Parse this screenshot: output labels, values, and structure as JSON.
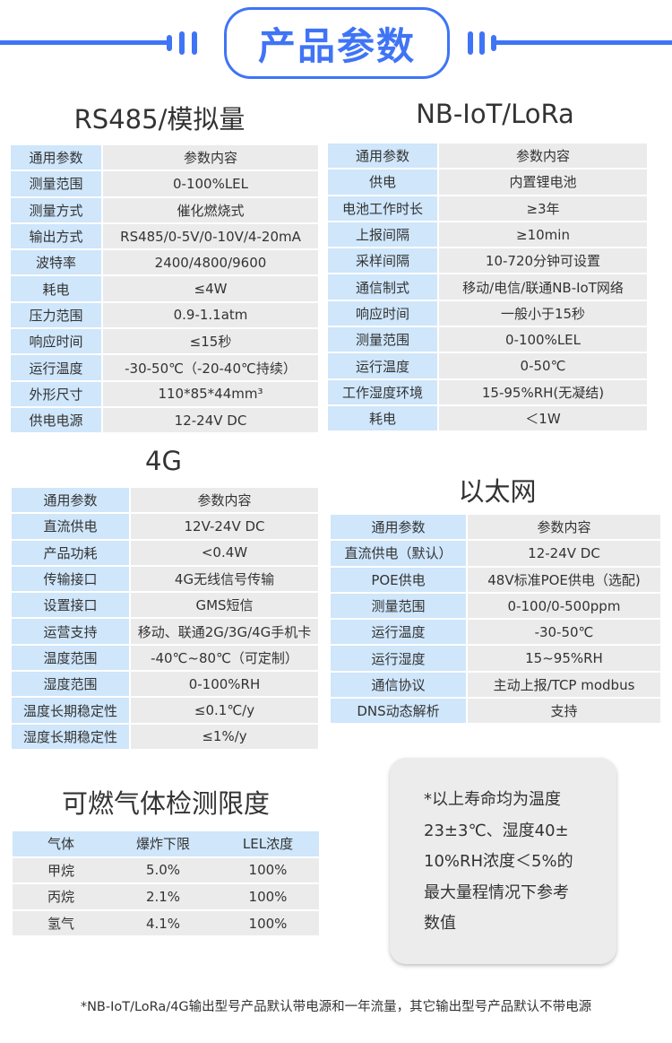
{
  "header": {
    "title": "产品参数",
    "accent": "#3f74f6"
  },
  "rs485": {
    "title": "RS485/模拟量",
    "rows": [
      [
        "通用参数",
        "参数内容"
      ],
      [
        "测量范围",
        "0-100%LEL"
      ],
      [
        "测量方式",
        "催化燃烧式"
      ],
      [
        "输出方式",
        "RS485/0-5V/0-10V/4-20mA"
      ],
      [
        "波特率",
        "2400/4800/9600"
      ],
      [
        "耗电",
        "≤4W"
      ],
      [
        "压力范围",
        "0.9-1.1atm"
      ],
      [
        "响应时间",
        "≤15秒"
      ],
      [
        "运行温度",
        "-30-50℃（-20-40℃持续）"
      ],
      [
        "外形尺寸",
        "110*85*44mm³"
      ],
      [
        "供电电源",
        "12-24V DC"
      ]
    ]
  },
  "nbiot": {
    "title": "NB-IoT/LoRa",
    "rows": [
      [
        "通用参数",
        "参数内容"
      ],
      [
        "供电",
        "内置锂电池"
      ],
      [
        "电池工作时长",
        "≥3年"
      ],
      [
        "上报间隔",
        "≥10min"
      ],
      [
        "采样间隔",
        "10-720分钟可设置"
      ],
      [
        "通信制式",
        "移动/电信/联通NB-IoT网络"
      ],
      [
        "响应时间",
        "一般小于15秒"
      ],
      [
        "测量范围",
        "0-100%LEL"
      ],
      [
        "运行温度",
        "0-50℃"
      ],
      [
        "工作湿度环境",
        "15-95%RH(无凝结)"
      ],
      [
        "耗电",
        "＜1W"
      ]
    ]
  },
  "g4": {
    "title": "4G",
    "rows": [
      [
        "通用参数",
        "参数内容"
      ],
      [
        "直流供电",
        "12V-24V DC"
      ],
      [
        "产品功耗",
        "<0.4W"
      ],
      [
        "传输接口",
        "4G无线信号传输"
      ],
      [
        "设置接口",
        "GMS短信"
      ],
      [
        "运营支持",
        "移动、联通2G/3G/4G手机卡"
      ],
      [
        "温度范围",
        "-40℃~80℃（可定制）"
      ],
      [
        "湿度范围",
        "0-100%RH"
      ],
      [
        "温度长期稳定性",
        "≤0.1℃/y"
      ],
      [
        "湿度长期稳定性",
        "≤1%/y"
      ]
    ]
  },
  "ethernet": {
    "title": "以太网",
    "rows": [
      [
        "通用参数",
        "参数内容"
      ],
      [
        "直流供电（默认）",
        "12-24V DC"
      ],
      [
        "POE供电",
        "48V标准POE供电（选配)"
      ],
      [
        "测量范围",
        "0-100/0-500ppm"
      ],
      [
        "运行温度",
        "-30-50℃"
      ],
      [
        "运行湿度",
        "15~95%RH"
      ],
      [
        "通信协议",
        "主动上报/TCP modbus"
      ],
      [
        "DNS动态解析",
        "支持"
      ]
    ]
  },
  "gas": {
    "title": "可燃气体检测限度",
    "rows": [
      [
        "气体",
        "爆炸下限",
        "LEL浓度"
      ],
      [
        "甲烷",
        "5.0%",
        "100%"
      ],
      [
        "丙烷",
        "2.1%",
        "100%"
      ],
      [
        "氢气",
        "4.1%",
        "100%"
      ]
    ]
  },
  "note": {
    "lines": [
      "*以上寿命均为温度",
      "23±3℃、湿度40±",
      "10%RH浓度＜5%的",
      "最大量程情况下参考",
      "数值"
    ]
  },
  "footer": "*NB-IoT/LoRa/4G输出型号产品默认带电源和一年流量，其它输出型号产品默认不带电源"
}
